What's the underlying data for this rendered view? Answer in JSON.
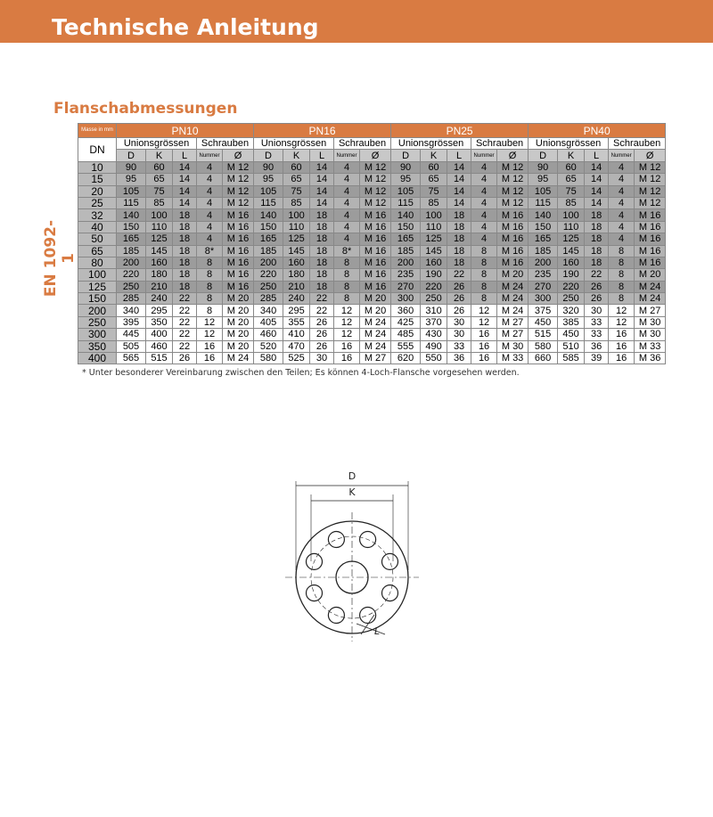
{
  "header": {
    "title": "Technische Anleitung"
  },
  "section_title": "Flanschabmessungen",
  "standard": "EN 1092-1",
  "table": {
    "corner": "Masse in mm",
    "groups": [
      "PN10",
      "PN16",
      "PN25",
      "PN40"
    ],
    "subgroups": [
      "Unionsgrössen",
      "Schrauben"
    ],
    "row_header": "DN",
    "columns": [
      "D",
      "K",
      "L",
      "Nummer",
      "Ø"
    ],
    "rows": [
      [
        "10",
        "90",
        "60",
        "14",
        "4",
        "M 12",
        "90",
        "60",
        "14",
        "4",
        "M 12",
        "90",
        "60",
        "14",
        "4",
        "M 12",
        "90",
        "60",
        "14",
        "4",
        "M 12"
      ],
      [
        "15",
        "95",
        "65",
        "14",
        "4",
        "M 12",
        "95",
        "65",
        "14",
        "4",
        "M 12",
        "95",
        "65",
        "14",
        "4",
        "M 12",
        "95",
        "65",
        "14",
        "4",
        "M 12"
      ],
      [
        "20",
        "105",
        "75",
        "14",
        "4",
        "M 12",
        "105",
        "75",
        "14",
        "4",
        "M 12",
        "105",
        "75",
        "14",
        "4",
        "M 12",
        "105",
        "75",
        "14",
        "4",
        "M 12"
      ],
      [
        "25",
        "115",
        "85",
        "14",
        "4",
        "M 12",
        "115",
        "85",
        "14",
        "4",
        "M 12",
        "115",
        "85",
        "14",
        "4",
        "M 12",
        "115",
        "85",
        "14",
        "4",
        "M 12"
      ],
      [
        "32",
        "140",
        "100",
        "18",
        "4",
        "M 16",
        "140",
        "100",
        "18",
        "4",
        "M 16",
        "140",
        "100",
        "18",
        "4",
        "M 16",
        "140",
        "100",
        "18",
        "4",
        "M 16"
      ],
      [
        "40",
        "150",
        "110",
        "18",
        "4",
        "M 16",
        "150",
        "110",
        "18",
        "4",
        "M 16",
        "150",
        "110",
        "18",
        "4",
        "M 16",
        "150",
        "110",
        "18",
        "4",
        "M 16"
      ],
      [
        "50",
        "165",
        "125",
        "18",
        "4",
        "M 16",
        "165",
        "125",
        "18",
        "4",
        "M 16",
        "165",
        "125",
        "18",
        "4",
        "M 16",
        "165",
        "125",
        "18",
        "4",
        "M 16"
      ],
      [
        "65",
        "185",
        "145",
        "18",
        "8*",
        "M 16",
        "185",
        "145",
        "18",
        "8*",
        "M 16",
        "185",
        "145",
        "18",
        "8",
        "M 16",
        "185",
        "145",
        "18",
        "8",
        "M 16"
      ],
      [
        "80",
        "200",
        "160",
        "18",
        "8",
        "M 16",
        "200",
        "160",
        "18",
        "8",
        "M 16",
        "200",
        "160",
        "18",
        "8",
        "M 16",
        "200",
        "160",
        "18",
        "8",
        "M 16"
      ],
      [
        "100",
        "220",
        "180",
        "18",
        "8",
        "M 16",
        "220",
        "180",
        "18",
        "8",
        "M 16",
        "235",
        "190",
        "22",
        "8",
        "M 20",
        "235",
        "190",
        "22",
        "8",
        "M 20"
      ],
      [
        "125",
        "250",
        "210",
        "18",
        "8",
        "M 16",
        "250",
        "210",
        "18",
        "8",
        "M 16",
        "270",
        "220",
        "26",
        "8",
        "M 24",
        "270",
        "220",
        "26",
        "8",
        "M 24"
      ],
      [
        "150",
        "285",
        "240",
        "22",
        "8",
        "M 20",
        "285",
        "240",
        "22",
        "8",
        "M 20",
        "300",
        "250",
        "26",
        "8",
        "M 24",
        "300",
        "250",
        "26",
        "8",
        "M 24"
      ],
      [
        "200",
        "340",
        "295",
        "22",
        "8",
        "M 20",
        "340",
        "295",
        "22",
        "12",
        "M 20",
        "360",
        "310",
        "26",
        "12",
        "M 24",
        "375",
        "320",
        "30",
        "12",
        "M 27"
      ],
      [
        "250",
        "395",
        "350",
        "22",
        "12",
        "M 20",
        "405",
        "355",
        "26",
        "12",
        "M 24",
        "425",
        "370",
        "30",
        "12",
        "M 27",
        "450",
        "385",
        "33",
        "12",
        "M 30"
      ],
      [
        "300",
        "445",
        "400",
        "22",
        "12",
        "M 20",
        "460",
        "410",
        "26",
        "12",
        "M 24",
        "485",
        "430",
        "30",
        "16",
        "M 27",
        "515",
        "450",
        "33",
        "16",
        "M 30"
      ],
      [
        "350",
        "505",
        "460",
        "22",
        "16",
        "M 20",
        "520",
        "470",
        "26",
        "16",
        "M 24",
        "555",
        "490",
        "33",
        "16",
        "M 30",
        "580",
        "510",
        "36",
        "16",
        "M 33"
      ],
      [
        "400",
        "565",
        "515",
        "26",
        "16",
        "M 24",
        "580",
        "525",
        "30",
        "16",
        "M 27",
        "620",
        "550",
        "36",
        "16",
        "M 33",
        "660",
        "585",
        "39",
        "16",
        "M 36"
      ]
    ]
  },
  "footnote": "* Unter besonderer Vereinbarung zwischen den Teilen; Es können 4-Loch-Flansche vorgesehen werden.",
  "diagram": {
    "labels": [
      "D",
      "K",
      "L"
    ]
  }
}
